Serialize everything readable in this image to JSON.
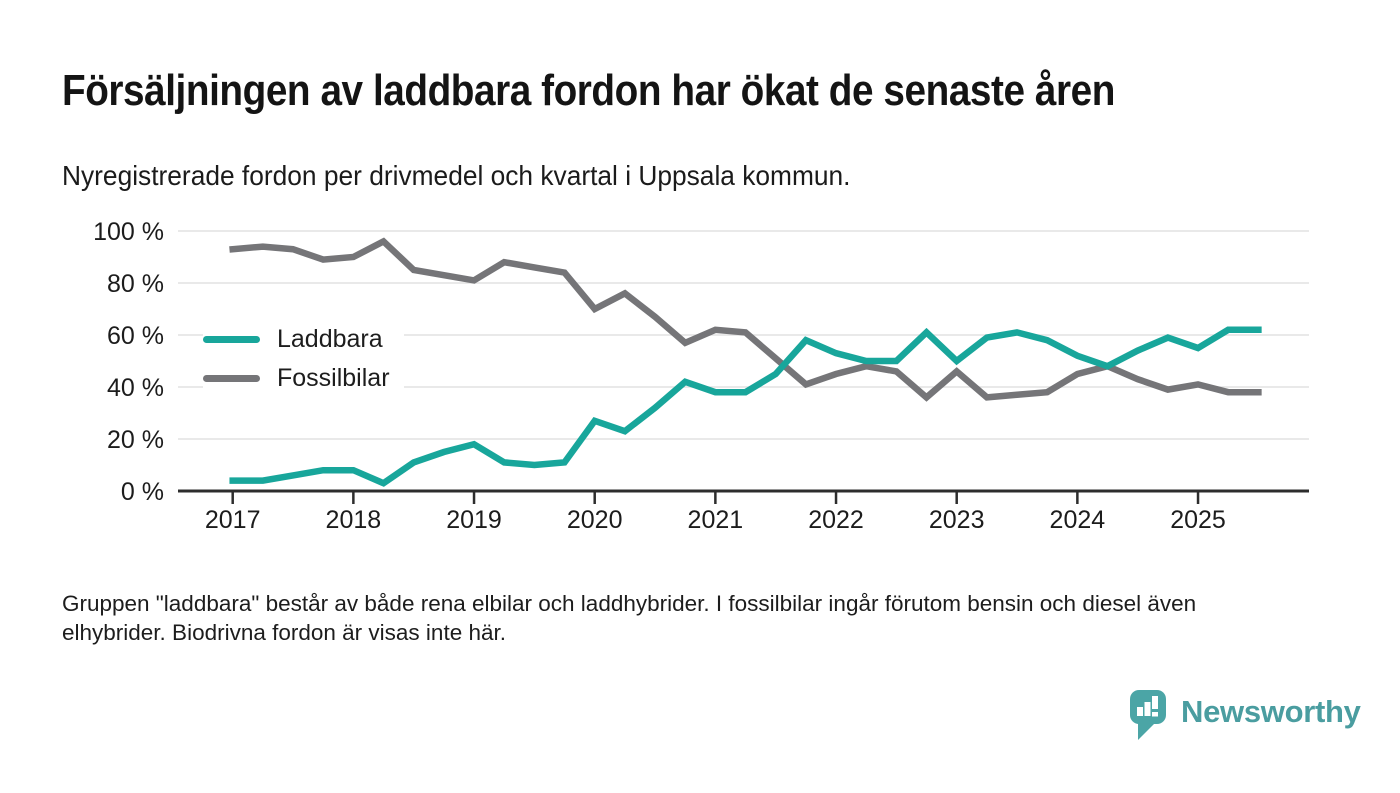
{
  "header": {
    "title": "Försäljningen av laddbara fordon har ökat de senaste åren",
    "subtitle": "Nyregistrerade fordon per drivmedel och kvartal i Uppsala kommun."
  },
  "chart_data": {
    "type": "line",
    "title": "Försäljningen av laddbara fordon har ökat de senaste åren",
    "subtitle": "Nyregistrerade fordon per drivmedel och kvartal i Uppsala kommun.",
    "x_unit": "quarter",
    "categories": [
      "2017 Q1",
      "2017 Q2",
      "2017 Q3",
      "2017 Q4",
      "2018 Q1",
      "2018 Q2",
      "2018 Q3",
      "2018 Q4",
      "2019 Q1",
      "2019 Q2",
      "2019 Q3",
      "2019 Q4",
      "2020 Q1",
      "2020 Q2",
      "2020 Q3",
      "2020 Q4",
      "2021 Q1",
      "2021 Q2",
      "2021 Q3",
      "2021 Q4",
      "2022 Q1",
      "2022 Q2",
      "2022 Q3",
      "2022 Q4",
      "2023 Q1",
      "2023 Q2",
      "2023 Q3",
      "2023 Q4",
      "2024 Q1",
      "2024 Q2",
      "2024 Q3",
      "2024 Q4",
      "2025 Q1",
      "2025 Q2",
      "2025 Q3"
    ],
    "series": [
      {
        "name": "Laddbara",
        "color": "#18a69b",
        "values": [
          4,
          4,
          6,
          8,
          8,
          3,
          11,
          15,
          18,
          11,
          10,
          11,
          27,
          23,
          32,
          42,
          38,
          38,
          45,
          58,
          53,
          50,
          50,
          61,
          50,
          59,
          61,
          58,
          52,
          48,
          54,
          59,
          55,
          62,
          62
        ]
      },
      {
        "name": "Fossilbilar",
        "color": "#757578",
        "values": [
          93,
          94,
          93,
          89,
          90,
          96,
          85,
          83,
          81,
          88,
          86,
          84,
          70,
          76,
          67,
          57,
          62,
          61,
          51,
          41,
          45,
          48,
          46,
          36,
          46,
          36,
          37,
          38,
          45,
          48,
          43,
          39,
          41,
          38,
          38
        ]
      }
    ],
    "ylim": [
      0,
      100
    ],
    "yticks": [
      0,
      20,
      40,
      60,
      80,
      100
    ],
    "ytick_suffix": " %",
    "xticks": [
      "2017",
      "2018",
      "2019",
      "2020",
      "2021",
      "2022",
      "2023",
      "2024",
      "2025"
    ],
    "grid": "horizontal",
    "legend_position": "inside-left"
  },
  "theme": {
    "grid_color": "#e2e2e2",
    "axis_color": "#2d2d2d",
    "tick_label_color": "#1c1c1c",
    "background": "#ffffff"
  },
  "footnote": {
    "text": "Gruppen \"laddbara\" består av både rena elbilar och laddhybrider. I fossilbilar ingår förutom bensin och diesel även elhybrider. Biodrivna fordon är visas inte här."
  },
  "branding": {
    "logo_text": "Newsworthy",
    "logo_text_color": "#4a9da0",
    "logo_icon_color": "#4ba5a6",
    "logo_icon": "speech-bubble-bar-chart-icon"
  }
}
